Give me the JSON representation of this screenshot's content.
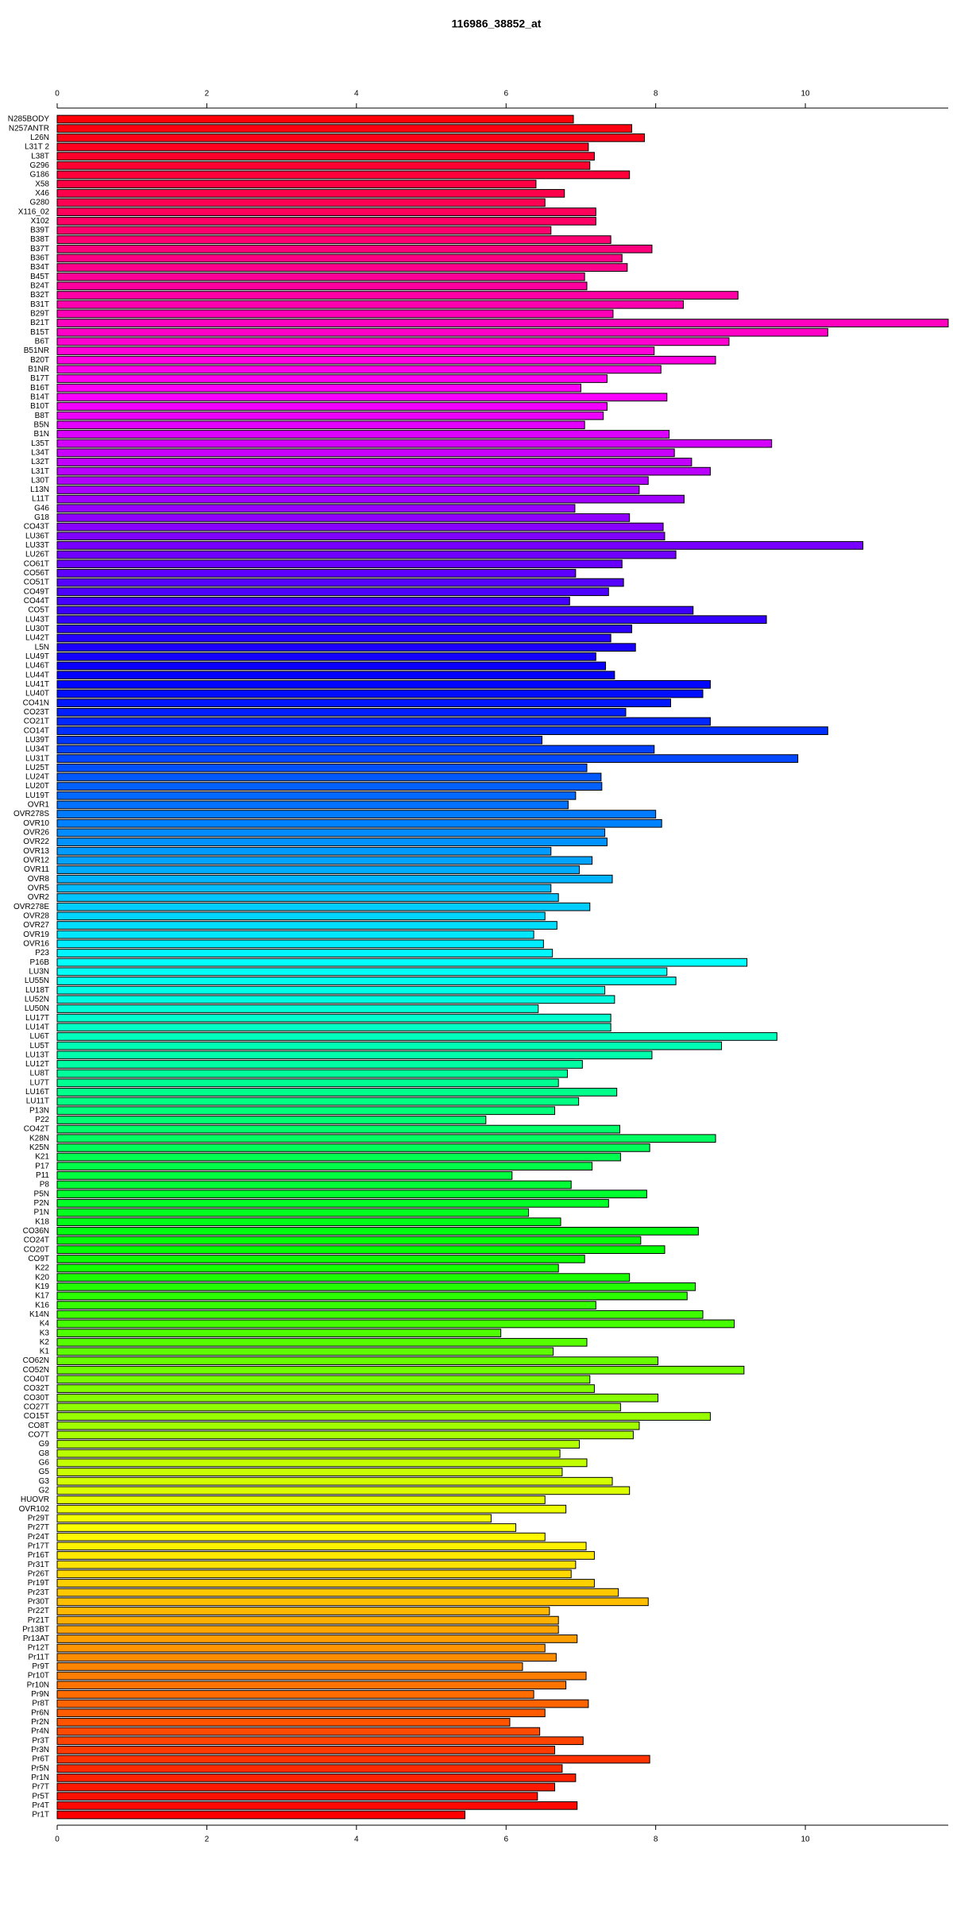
{
  "chart_data": {
    "type": "barh",
    "title": "116986_38852_at",
    "categories": [
      "N285BODY",
      "N257ANTR",
      "L26N",
      "L31T 2",
      "L38T",
      "G296",
      "G186",
      "X58",
      "X46",
      "G280",
      "X116_02",
      "X102",
      "B39T",
      "B38T",
      "B37T",
      "B36T",
      "B34T",
      "B45T",
      "B24T",
      "B32T",
      "B31T",
      "B29T",
      "B21T",
      "B15T",
      "B6T",
      "B51NR",
      "B20T",
      "B1NR",
      "B17T",
      "B16T",
      "B14T",
      "B10T",
      "B8T",
      "B5N",
      "B1N",
      "L35T",
      "L34T",
      "L32T",
      "L31T",
      "L30T",
      "L13N",
      "L11T",
      "G46",
      "G18",
      "CO43T",
      "LU36T",
      "LU33T",
      "LU26T",
      "CO61T",
      "CO56T",
      "CO51T",
      "CO49T",
      "CO44T",
      "CO5T",
      "LU43T",
      "LU30T",
      "LU42T",
      "L5N",
      "LU49T",
      "LU46T",
      "LU44T",
      "LU41T",
      "LU40T",
      "CO41N",
      "CO23T",
      "CO21T",
      "CO14T",
      "LU39T",
      "LU34T",
      "LU31T",
      "LU25T",
      "LU24T",
      "LU20T",
      "LU19T",
      "OVR1",
      "OVR278S",
      "OVR10",
      "OVR26",
      "OVR22",
      "OVR13",
      "OVR12",
      "OVR11",
      "OVR8",
      "OVR5",
      "OVR2",
      "OVR278E",
      "OVR28",
      "OVR27",
      "OVR19",
      "OVR16",
      "P23",
      "P16B",
      "LU3N",
      "LU55N",
      "LU18T",
      "LU52N",
      "LU50N",
      "LU17T",
      "LU14T",
      "LU6T",
      "LU5T",
      "LU13T",
      "LU12T",
      "LU8T",
      "LU7T",
      "LU16T",
      "LU11T",
      "P13N",
      "P22",
      "CO42T",
      "K28N",
      "K25N",
      "K21",
      "P17",
      "P11",
      "P8",
      "P5N",
      "P2N",
      "P1N",
      "K18",
      "CO36N",
      "CO24T",
      "CO20T",
      "CO9T",
      "K22",
      "K20",
      "K19",
      "K17",
      "K16",
      "K14N",
      "K4",
      "K3",
      "K2",
      "K1",
      "CO62N",
      "CO52N",
      "CO40T",
      "CO32T",
      "CO30T",
      "CO27T",
      "CO15T",
      "CO8T",
      "CO7T",
      "G9",
      "G8",
      "G6",
      "G5",
      "G3",
      "G2",
      "HUOVR",
      "OVR102",
      "Pr29T",
      "Pr27T",
      "Pr24T",
      "Pr17T",
      "Pr16T",
      "Pr31T",
      "Pr26T",
      "Pr19T",
      "Pr23T",
      "Pr30T",
      "Pr22T",
      "Pr21T",
      "Pr13BT",
      "Pr13AT",
      "Pr12T",
      "Pr11T",
      "Pr9T",
      "Pr10T",
      "Pr10N",
      "Pr9N",
      "Pr8T",
      "Pr6N",
      "Pr2N",
      "Pr4N",
      "Pr3T",
      "Pr3N",
      "Pr6T",
      "Pr5N",
      "Pr1N",
      "Pr7T",
      "Pr5T",
      "Pr4T",
      "Pr1T"
    ],
    "values": [
      6.9,
      7.68,
      7.85,
      7.1,
      7.18,
      7.12,
      7.65,
      6.4,
      6.78,
      6.52,
      7.2,
      7.2,
      6.6,
      7.4,
      7.95,
      7.55,
      7.62,
      7.05,
      7.08,
      9.1,
      8.37,
      7.43,
      11.91,
      10.3,
      8.98,
      7.98,
      8.8,
      8.07,
      7.35,
      7.0,
      8.15,
      7.35,
      7.3,
      7.05,
      8.18,
      9.55,
      8.25,
      8.48,
      8.73,
      7.9,
      7.78,
      8.38,
      6.92,
      7.65,
      8.1,
      8.12,
      10.77,
      8.27,
      7.55,
      6.93,
      7.57,
      7.37,
      6.85,
      8.5,
      9.48,
      7.68,
      7.4,
      7.73,
      7.2,
      7.33,
      7.45,
      8.73,
      8.63,
      8.2,
      7.6,
      8.73,
      10.3,
      6.48,
      7.98,
      9.9,
      7.08,
      7.27,
      7.28,
      6.93,
      6.83,
      8.0,
      8.08,
      7.32,
      7.35,
      6.6,
      7.15,
      6.98,
      7.42,
      6.6,
      6.7,
      7.12,
      6.52,
      6.68,
      6.37,
      6.5,
      6.62,
      9.22,
      8.15,
      8.27,
      7.32,
      7.45,
      6.43,
      7.4,
      7.4,
      9.62,
      8.88,
      7.95,
      7.02,
      6.82,
      6.7,
      7.48,
      6.97,
      6.65,
      5.73,
      7.52,
      8.8,
      7.92,
      7.53,
      7.15,
      6.08,
      6.87,
      7.88,
      7.37,
      6.3,
      6.73,
      8.57,
      7.8,
      8.12,
      7.05,
      6.7,
      7.65,
      8.53,
      8.42,
      7.2,
      8.63,
      9.05,
      5.93,
      7.08,
      6.63,
      8.03,
      9.18,
      7.12,
      7.18,
      8.03,
      7.53,
      8.73,
      7.78,
      7.7,
      6.98,
      6.72,
      7.08,
      6.75,
      7.42,
      7.65,
      6.52,
      6.8,
      5.8,
      6.13,
      6.52,
      7.07,
      7.18,
      6.93,
      6.87,
      7.18,
      7.5,
      7.9,
      6.58,
      6.7,
      6.7,
      6.95,
      6.52,
      6.67,
      6.22,
      7.07,
      6.8,
      6.37,
      7.1,
      6.52,
      6.05,
      6.45,
      7.03,
      6.65,
      7.92,
      6.75,
      6.93,
      6.65,
      6.42,
      6.95,
      5.45
    ],
    "color_scheme": "rainbow",
    "xlim": [
      0,
      11.91
    ],
    "xticks": [
      0,
      2,
      4,
      6,
      8,
      10
    ]
  }
}
